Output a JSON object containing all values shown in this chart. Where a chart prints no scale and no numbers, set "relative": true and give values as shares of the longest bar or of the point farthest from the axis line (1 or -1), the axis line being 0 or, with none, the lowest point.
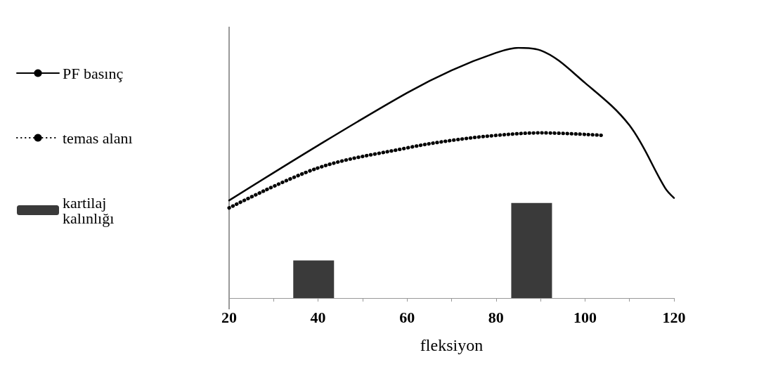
{
  "chart_data": {
    "type": "line",
    "relative": true,
    "xlabel": "fleksiyon",
    "xlim": [
      20,
      120
    ],
    "xticks": [
      20,
      {
        "value": 30,
        "label": null
      },
      40,
      {
        "value": 50,
        "label": null
      },
      60,
      {
        "value": 70,
        "label": null
      },
      80,
      {
        "value": 90,
        "label": null
      },
      100,
      {
        "value": 110,
        "label": null
      },
      120
    ],
    "grid": false,
    "legend": "left",
    "marker": "none",
    "series": [
      {
        "name": "PF basınç",
        "color": "#000000",
        "line_style": "solid",
        "x": [
          20,
          40,
          60,
          70,
          80,
          85,
          90,
          100,
          110,
          118,
          120
        ],
        "values": [
          0.39,
          0.61,
          0.82,
          0.91,
          0.98,
          1.0,
          0.99,
          0.86,
          0.69,
          0.44,
          0.4
        ]
      },
      {
        "name": "temas alanı",
        "color": "#000000",
        "line_style": "dotted",
        "x": [
          20,
          40,
          60,
          70,
          80,
          90,
          104
        ],
        "values": [
          0.36,
          0.52,
          0.6,
          0.63,
          0.65,
          0.66,
          0.65
        ]
      },
      {
        "name": "kartilaj kalınlığı",
        "type": "bar",
        "color": "#3a3a3a",
        "x": [
          39,
          88
        ],
        "values": [
          0.15,
          0.38
        ]
      }
    ]
  }
}
